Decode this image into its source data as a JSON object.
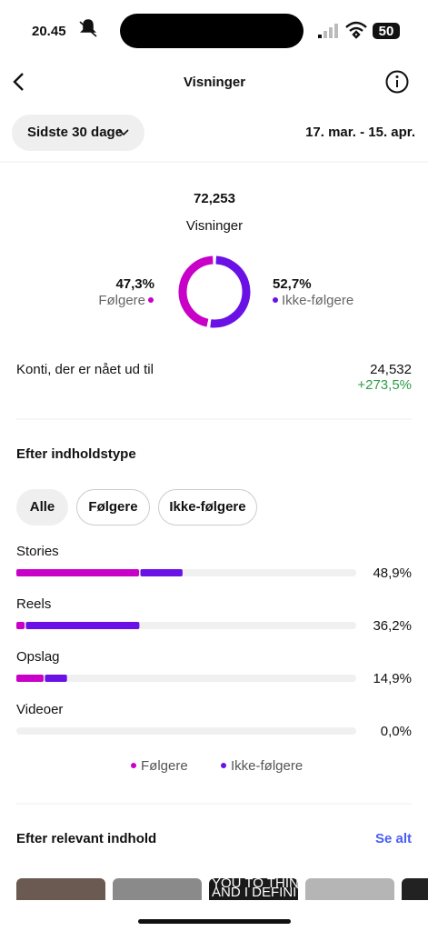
{
  "status_bar": {
    "time": "20.45",
    "battery": "50"
  },
  "header": {
    "title": "Visninger"
  },
  "period": {
    "selector": "Sidste 30 dage",
    "range": "17. mar. - 15. apr."
  },
  "summary": {
    "total": "72,253",
    "label": "Visninger"
  },
  "reach": {
    "label": "Konti, der er nået ud til",
    "value": "24,532",
    "change": "+273,5%"
  },
  "content_type": {
    "title": "Efter indholdstype",
    "filters": [
      "Alle",
      "Følgere",
      "Ikke-følgere"
    ]
  },
  "relevant": {
    "title": "Efter relevant indhold",
    "link": "Se alt",
    "thumbnail_text": [
      "YOU TO THINK DIFFERENTLY",
      "AND I DEFINITELY SHO"
    ]
  },
  "chart_data": [
    {
      "type": "pie",
      "categories": [
        "Følgere",
        "Ikke-følgere"
      ],
      "values": [
        47.3,
        52.7
      ],
      "value_labels": [
        "47,3%",
        "52,7%"
      ],
      "colors": [
        "#c800c8",
        "#6a12e6"
      ]
    },
    {
      "type": "bar",
      "orientation": "horizontal",
      "categories": [
        "Stories",
        "Reels",
        "Opslag",
        "Videoer"
      ],
      "series": [
        {
          "name": "Følgere",
          "color": "#c800c8",
          "values": [
            36.1,
            2.4,
            8.0,
            0
          ]
        },
        {
          "name": "Ikke-følgere",
          "color": "#6a12e6",
          "values": [
            12.8,
            33.8,
            6.9,
            0
          ]
        }
      ],
      "total_labels": [
        "48,9%",
        "36,2%",
        "14,9%",
        "0,0%"
      ],
      "xlim": [
        0,
        100
      ]
    }
  ]
}
